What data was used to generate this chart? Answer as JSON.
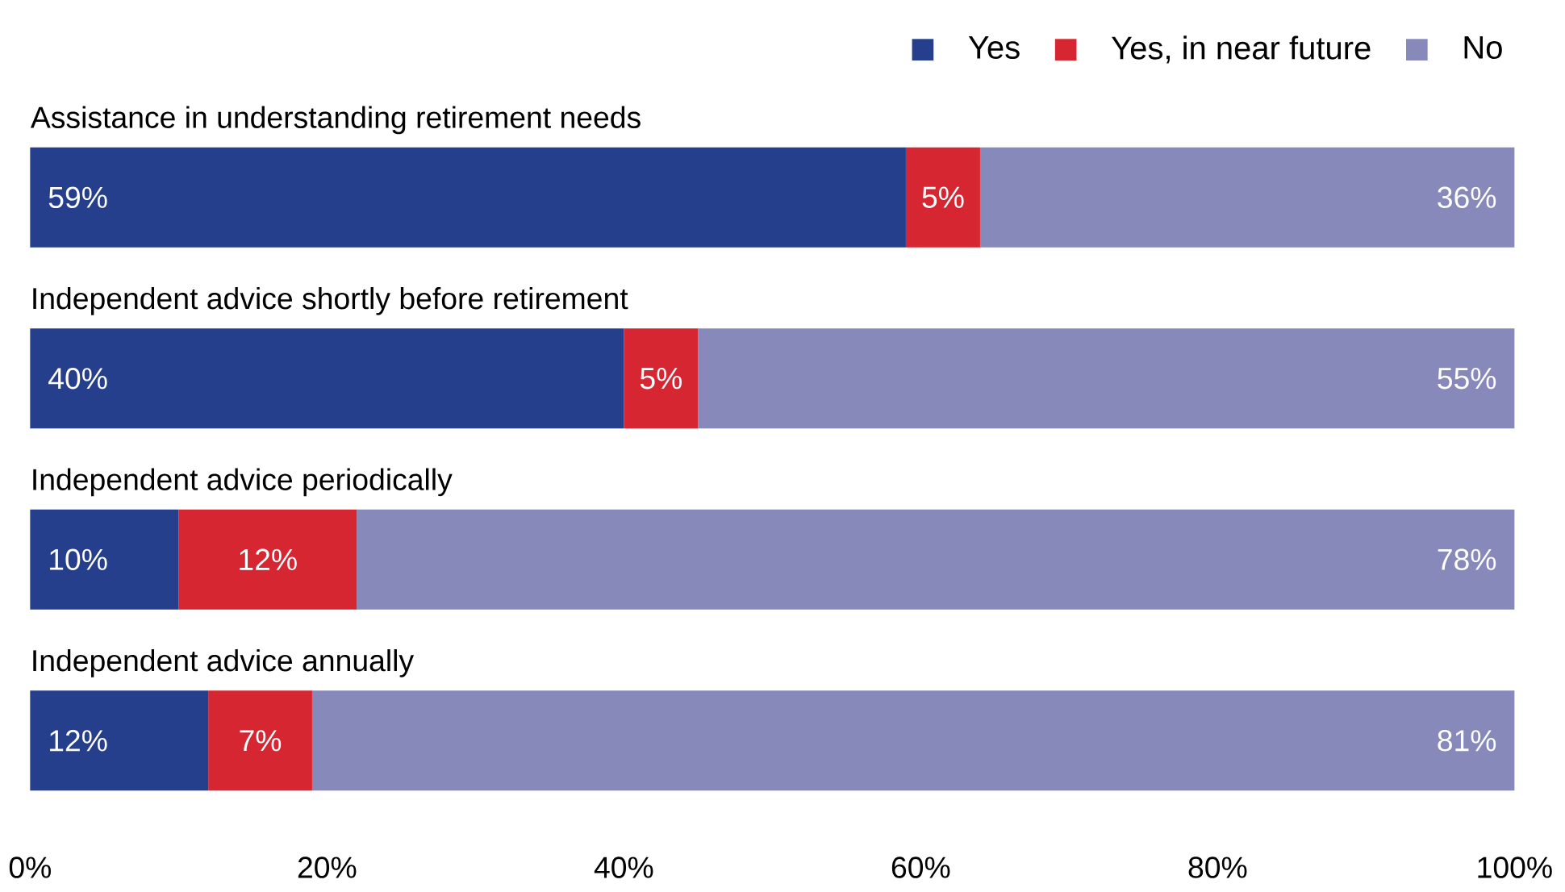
{
  "chart_data": {
    "type": "bar",
    "orientation": "horizontal",
    "stacked": true,
    "legend": "top right",
    "categories": [
      "Assistance in understanding retirement needs",
      "Independent advice shortly before retirement",
      "Independent advice periodically",
      "Independent advice annually"
    ],
    "series": [
      {
        "name": "Yes",
        "color": "#253f8c",
        "values": [
          59,
          40,
          10,
          12
        ],
        "value_labels": [
          "59%",
          "40%",
          "10%",
          "12%"
        ]
      },
      {
        "name": "Yes, in near future",
        "color": "#d52631",
        "values": [
          5,
          5,
          12,
          7
        ],
        "value_labels": [
          "5%",
          "5%",
          "12%",
          "7%"
        ]
      },
      {
        "name": "No",
        "color": "#8889bb",
        "values": [
          36,
          55,
          78,
          81
        ],
        "value_labels": [
          "36%",
          "55%",
          "78%",
          "81%"
        ]
      }
    ],
    "xlim": [
      0,
      100
    ],
    "xticks": [
      {
        "value": 0,
        "label": "0%"
      },
      {
        "value": 20,
        "label": "20%"
      },
      {
        "value": 40,
        "label": "40%"
      },
      {
        "value": 60,
        "label": "60%"
      },
      {
        "value": 80,
        "label": "80%"
      },
      {
        "value": 100,
        "label": "100%"
      }
    ]
  }
}
